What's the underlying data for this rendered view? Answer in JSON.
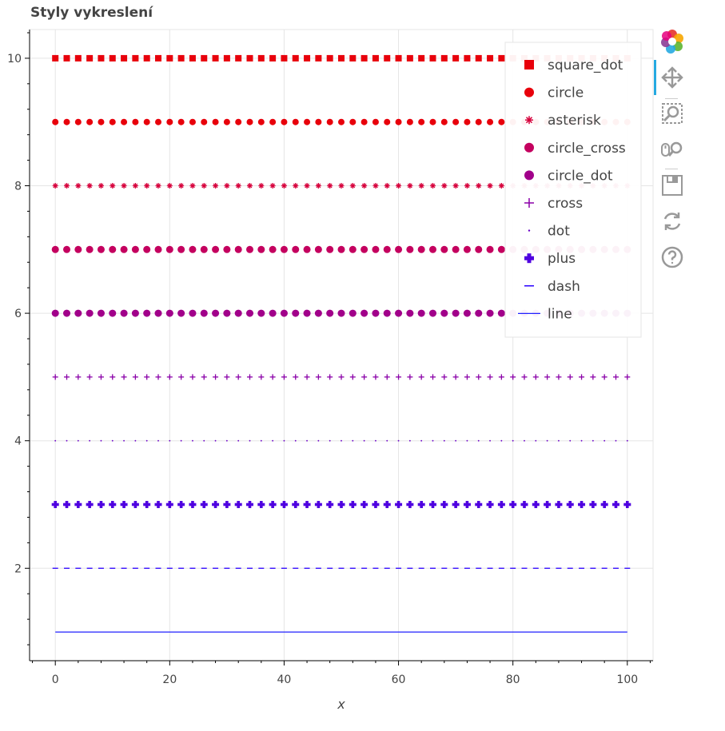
{
  "chart_data": {
    "type": "scatter",
    "title": "Styly vykreslení",
    "xlabel": "x",
    "ylabel": "",
    "xlim": [
      -4.5,
      104.5
    ],
    "ylim": [
      0.55,
      10.45
    ],
    "x_ticks": [
      0,
      20,
      40,
      60,
      80,
      100
    ],
    "y_ticks": [
      2,
      4,
      6,
      8,
      10
    ],
    "grid": true,
    "legend_position": "top-right",
    "x_values": "0 to 100, step 2",
    "series": [
      {
        "name": "square_dot",
        "marker": "square_dot",
        "y": 10,
        "color": "#e8000b"
      },
      {
        "name": "circle",
        "marker": "circle",
        "y": 9,
        "color": "#e8000b"
      },
      {
        "name": "asterisk",
        "marker": "asterisk",
        "y": 8,
        "color": "#d6003b"
      },
      {
        "name": "circle_cross",
        "marker": "circle_cross",
        "y": 7,
        "color": "#c4005f"
      },
      {
        "name": "circle_dot",
        "marker": "circle_dot",
        "y": 6,
        "color": "#a1008a"
      },
      {
        "name": "cross",
        "marker": "cross",
        "y": 5,
        "color": "#8a00a8"
      },
      {
        "name": "dot",
        "marker": "dot",
        "y": 4,
        "color": "#6a00c8"
      },
      {
        "name": "plus",
        "marker": "plus",
        "y": 3,
        "color": "#4f00e0"
      },
      {
        "name": "dash",
        "marker": "dash",
        "y": 2,
        "color": "#2a00ff"
      },
      {
        "name": "line",
        "marker": "line",
        "y": 1,
        "color": "#2020ff"
      }
    ]
  },
  "toolbar": {
    "tools": [
      "bokeh-logo-icon",
      "pan-icon",
      "box-zoom-icon",
      "wheel-zoom-icon",
      "save-icon",
      "reset-icon",
      "help-icon"
    ],
    "active_color": "#26aae1"
  }
}
